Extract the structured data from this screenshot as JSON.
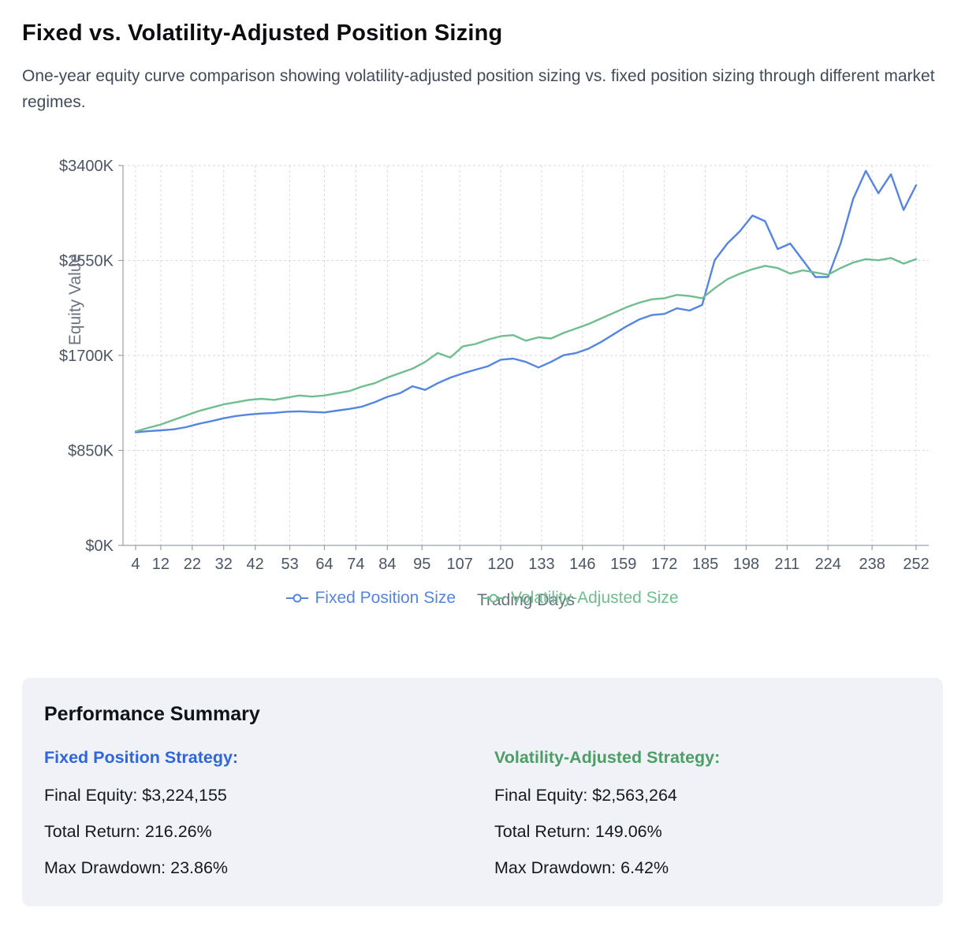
{
  "page": {
    "title": "Fixed vs. Volatility-Adjusted Position Sizing",
    "subtitle": "One-year equity curve comparison showing volatility-adjusted position sizing vs. fixed position sizing through different market regimes."
  },
  "chart_data": {
    "type": "line",
    "xlabel": "Trading Days",
    "ylabel": "Equity Value",
    "grid": "dashed",
    "legend_position": "bottom",
    "x_domain": [
      0,
      256
    ],
    "y_domain": [
      0,
      3400
    ],
    "x_ticks": [
      4,
      12,
      22,
      32,
      42,
      53,
      64,
      74,
      84,
      95,
      107,
      120,
      133,
      146,
      159,
      172,
      185,
      198,
      211,
      224,
      238,
      252
    ],
    "y_ticks": [
      0,
      850,
      1700,
      2550,
      3400
    ],
    "y_tick_labels": [
      "$0K",
      "$850K",
      "$1700K",
      "$2550K",
      "$3400K"
    ],
    "series": [
      {
        "name": "Fixed Position Size",
        "color": "#5585e2",
        "x": [
          4,
          8,
          12,
          16,
          20,
          24,
          28,
          32,
          36,
          40,
          44,
          48,
          52,
          56,
          60,
          64,
          68,
          72,
          76,
          80,
          84,
          88,
          92,
          96,
          100,
          104,
          108,
          112,
          116,
          120,
          124,
          128,
          132,
          136,
          140,
          144,
          148,
          152,
          156,
          160,
          164,
          168,
          172,
          176,
          180,
          184,
          188,
          192,
          196,
          200,
          204,
          208,
          212,
          216,
          220,
          224,
          228,
          232,
          236,
          240,
          244,
          248,
          252
        ],
        "y": [
          1012,
          1022,
          1030,
          1038,
          1058,
          1088,
          1112,
          1138,
          1158,
          1172,
          1180,
          1186,
          1196,
          1200,
          1194,
          1190,
          1206,
          1222,
          1242,
          1282,
          1330,
          1362,
          1424,
          1392,
          1452,
          1502,
          1540,
          1572,
          1604,
          1662,
          1672,
          1642,
          1592,
          1642,
          1702,
          1722,
          1762,
          1822,
          1892,
          1962,
          2022,
          2062,
          2072,
          2122,
          2102,
          2152,
          2552,
          2702,
          2812,
          2952,
          2902,
          2652,
          2702,
          2552,
          2402,
          2402,
          2702,
          3102,
          3352,
          3152,
          3322,
          3002,
          3224
        ]
      },
      {
        "name": "Volatility-Adjusted Size",
        "color": "#6fbe8f",
        "x": [
          4,
          8,
          12,
          16,
          20,
          24,
          28,
          32,
          36,
          40,
          44,
          48,
          52,
          56,
          60,
          64,
          68,
          72,
          76,
          80,
          84,
          88,
          92,
          96,
          100,
          104,
          108,
          112,
          116,
          120,
          124,
          128,
          132,
          136,
          140,
          144,
          148,
          152,
          156,
          160,
          164,
          168,
          172,
          176,
          180,
          184,
          188,
          192,
          196,
          200,
          204,
          208,
          212,
          216,
          220,
          224,
          228,
          232,
          236,
          240,
          244,
          248,
          252
        ],
        "y": [
          1020,
          1052,
          1082,
          1122,
          1162,
          1202,
          1232,
          1262,
          1282,
          1302,
          1312,
          1302,
          1322,
          1342,
          1332,
          1342,
          1362,
          1382,
          1422,
          1452,
          1502,
          1542,
          1582,
          1642,
          1722,
          1682,
          1782,
          1802,
          1842,
          1872,
          1882,
          1832,
          1862,
          1852,
          1902,
          1942,
          1982,
          2032,
          2082,
          2132,
          2172,
          2202,
          2212,
          2242,
          2232,
          2212,
          2302,
          2382,
          2432,
          2472,
          2502,
          2482,
          2432,
          2462,
          2442,
          2422,
          2482,
          2532,
          2562,
          2552,
          2572,
          2522,
          2563
        ]
      }
    ]
  },
  "summary": {
    "heading": "Performance Summary",
    "columns": [
      {
        "heading": "Fixed Position Strategy:",
        "color": "#2f66e0",
        "rows": [
          "Final Equity: $3,224,155",
          "Total Return: 216.26%",
          "Max Drawdown: 23.86%"
        ]
      },
      {
        "heading": "Volatility-Adjusted Strategy:",
        "color": "#4d9e66",
        "rows": [
          "Final Equity: $2,563,264",
          "Total Return: 149.06%",
          "Max Drawdown: 6.42%"
        ]
      }
    ]
  }
}
